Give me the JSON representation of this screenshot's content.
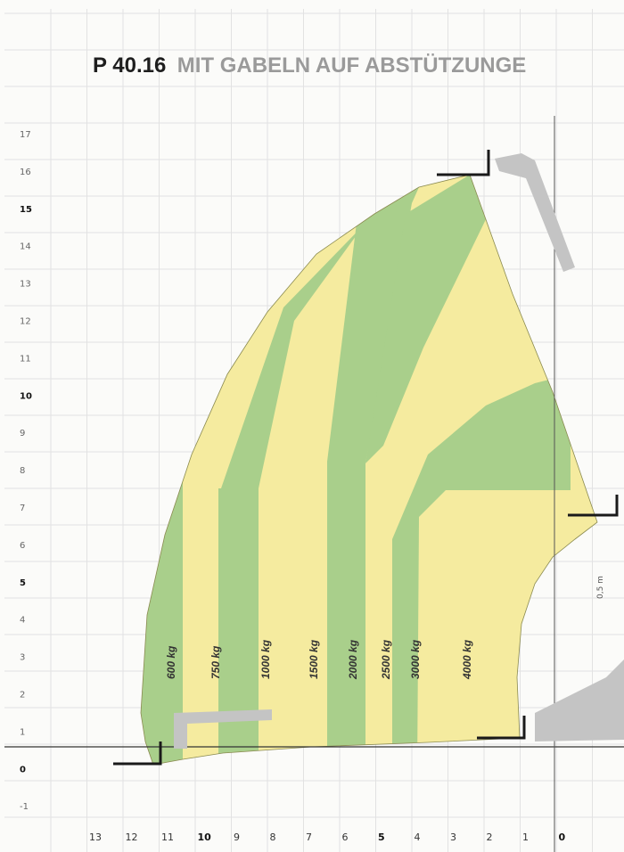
{
  "title": {
    "model": "P 40.16",
    "subtitle": "MIT GABELN AUF ABSTÜTZUNGE"
  },
  "y_axis": {
    "ticks": [
      "17",
      "16",
      "15",
      "14",
      "13",
      "12",
      "11",
      "10",
      "9",
      "8",
      "7",
      "6",
      "5",
      "4",
      "3",
      "2",
      "1",
      "0",
      "-1"
    ],
    "bold_ticks": [
      "15",
      "10",
      "5",
      "0"
    ]
  },
  "x_axis": {
    "ticks": [
      "13",
      "12",
      "11",
      "10",
      "9",
      "8",
      "7",
      "6",
      "5",
      "4",
      "3",
      "2",
      "1",
      "0"
    ],
    "bold_ticks": [
      "10",
      "5",
      "0"
    ]
  },
  "load_zones": [
    {
      "label": "600 kg",
      "color": "green"
    },
    {
      "label": "750 kg",
      "color": "yellow"
    },
    {
      "label": "1000 kg",
      "color": "green"
    },
    {
      "label": "1500 kg",
      "color": "yellow"
    },
    {
      "label": "2000 kg",
      "color": "green"
    },
    {
      "label": "2500 kg",
      "color": "yellow"
    },
    {
      "label": "3000 kg",
      "color": "green"
    },
    {
      "label": "4000 kg",
      "color": "yellow"
    }
  ],
  "annotation": {
    "distance": "0,5 m"
  },
  "colors": {
    "green": "#a9cf8b",
    "yellow": "#f5eb9f",
    "grid": "#e2e2e2",
    "machine": "#c4c4c4",
    "fork": "#1a1a1a"
  },
  "icons": [
    "fork-icon",
    "telescopic-handler-silhouette"
  ]
}
